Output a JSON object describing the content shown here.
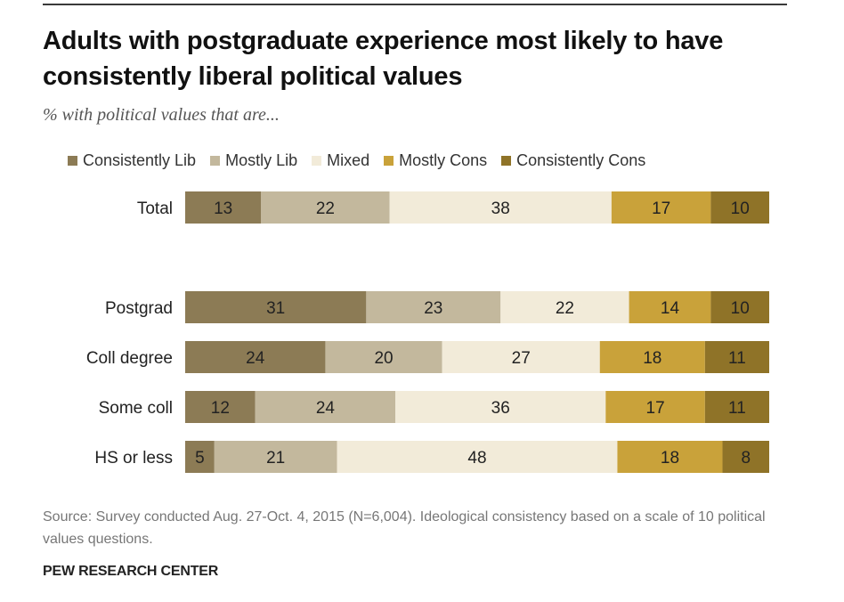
{
  "title": "Adults with postgraduate experience most likely to have consistently liberal political values",
  "subtitle": "% with political values that are...",
  "legend": [
    {
      "label": "Consistently Lib",
      "color": "#8c7b55"
    },
    {
      "label": "Mostly Lib",
      "color": "#c3b89d"
    },
    {
      "label": "Mixed",
      "color": "#f2ebd9"
    },
    {
      "label": "Mostly Cons",
      "color": "#c9a23a"
    },
    {
      "label": "Consistently Cons",
      "color": "#8f7328"
    }
  ],
  "chart_data": {
    "type": "bar",
    "orientation": "horizontal",
    "stacked": true,
    "title": "Adults with postgraduate experience most likely to have consistently liberal political values",
    "subtitle": "% with political values that are...",
    "categories": [
      "Total",
      "Postgrad",
      "Coll degree",
      "Some coll",
      "HS or less"
    ],
    "series": [
      {
        "name": "Consistently Lib",
        "color": "#8c7b55",
        "values": [
          13,
          31,
          24,
          12,
          5
        ]
      },
      {
        "name": "Mostly Lib",
        "color": "#c3b89d",
        "values": [
          22,
          23,
          20,
          24,
          21
        ]
      },
      {
        "name": "Mixed",
        "color": "#f2ebd9",
        "values": [
          38,
          22,
          27,
          36,
          48
        ]
      },
      {
        "name": "Mostly Cons",
        "color": "#c9a23a",
        "values": [
          17,
          14,
          18,
          17,
          18
        ]
      },
      {
        "name": "Consistently Cons",
        "color": "#8f7328",
        "values": [
          10,
          10,
          11,
          11,
          8
        ]
      }
    ],
    "xlim": [
      0,
      100
    ],
    "xlabel": "",
    "ylabel": "",
    "grid": false,
    "legend_position": "top"
  },
  "source": "Source: Survey conducted Aug. 27-Oct. 4, 2015 (N=6,004). Ideological consistency based on a scale of 10 political values questions.",
  "org": "PEW RESEARCH CENTER"
}
